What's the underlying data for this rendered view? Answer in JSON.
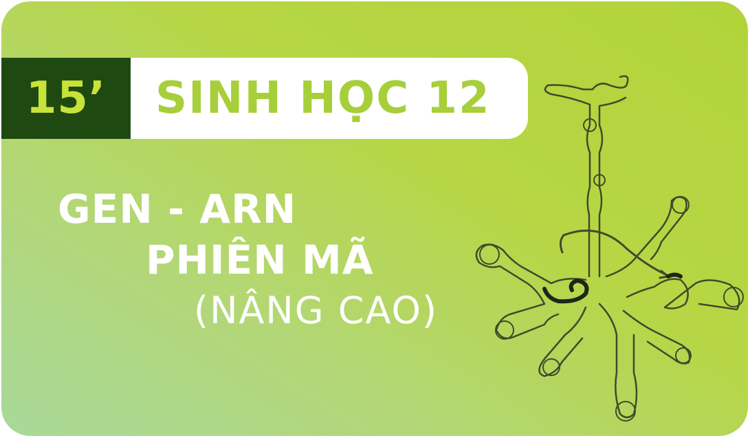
{
  "badge": {
    "time": "15’",
    "subject": "SINH HỌC 12"
  },
  "title": {
    "line1": "GEN - ARN",
    "line2": "PHIÊN MÃ",
    "line3": "(NÂNG CAO)"
  },
  "colors": {
    "dark_green": "#1e4a12",
    "lime": "#b6d645",
    "accent_text": "#a6cf3a"
  },
  "illustration": "rna-secondary-structure"
}
